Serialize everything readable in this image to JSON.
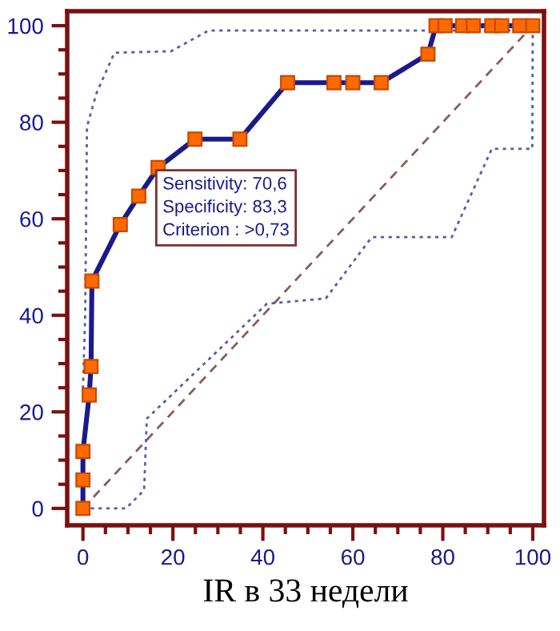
{
  "chart_data": {
    "type": "line",
    "marker": "square",
    "xlabel": "IR в 33 недели",
    "xlim": [
      -3.5,
      102.5
    ],
    "ylim": [
      -3.5,
      103
    ],
    "xticks": [
      0,
      20,
      40,
      60,
      80,
      100
    ],
    "yticks": [
      0,
      20,
      40,
      60,
      80,
      100
    ],
    "grid": false,
    "series": [
      {
        "color": "#1a1a8c",
        "line_style": "solid",
        "x": [
          0,
          0,
          0,
          1.4,
          1.8,
          2,
          8.3,
          12.4,
          16.7,
          24.9,
          34.9,
          45.5,
          55.8,
          60,
          66.3,
          76.7,
          78.5,
          80.5,
          84.4,
          86.8,
          90.9,
          93.1,
          97.1,
          100
        ],
        "values": [
          0,
          5.9,
          11.8,
          23.5,
          29.4,
          47.1,
          58.8,
          64.7,
          70.6,
          76.5,
          76.5,
          88.2,
          88.2,
          88.2,
          88.2,
          94.1,
          100,
          100,
          100,
          100,
          100,
          100,
          100,
          100
        ]
      },
      {
        "color": "#8b5a5a",
        "line_style": "dashed",
        "marker": "none",
        "x": [
          0,
          100
        ],
        "values": [
          0,
          100
        ]
      },
      {
        "color": "#5a5aa8",
        "line_style": "dotted",
        "marker": "none",
        "x": [
          0,
          0.5,
          0.9,
          3,
          7,
          19.6,
          27.9,
          78.5,
          100
        ],
        "values": [
          24.8,
          40,
          79.1,
          86,
          94.4,
          94.7,
          99,
          99,
          99
        ]
      },
      {
        "color": "#5a5aa8",
        "line_style": "dotted",
        "marker": "none",
        "x": [
          0,
          9.6,
          13.6,
          14.2,
          40.9,
          54,
          64.2,
          82,
          90.9,
          99.9,
          100
        ],
        "values": [
          0,
          0,
          3.8,
          18.6,
          42.4,
          43.5,
          56.2,
          56.2,
          74.5,
          74.5,
          99.5
        ]
      }
    ],
    "annotations": [
      {
        "text": "Sensitivity: 70,6\nSpecificity: 83,3\nCriterion : >0,73",
        "x": 16.7,
        "y": 70.6
      }
    ]
  }
}
